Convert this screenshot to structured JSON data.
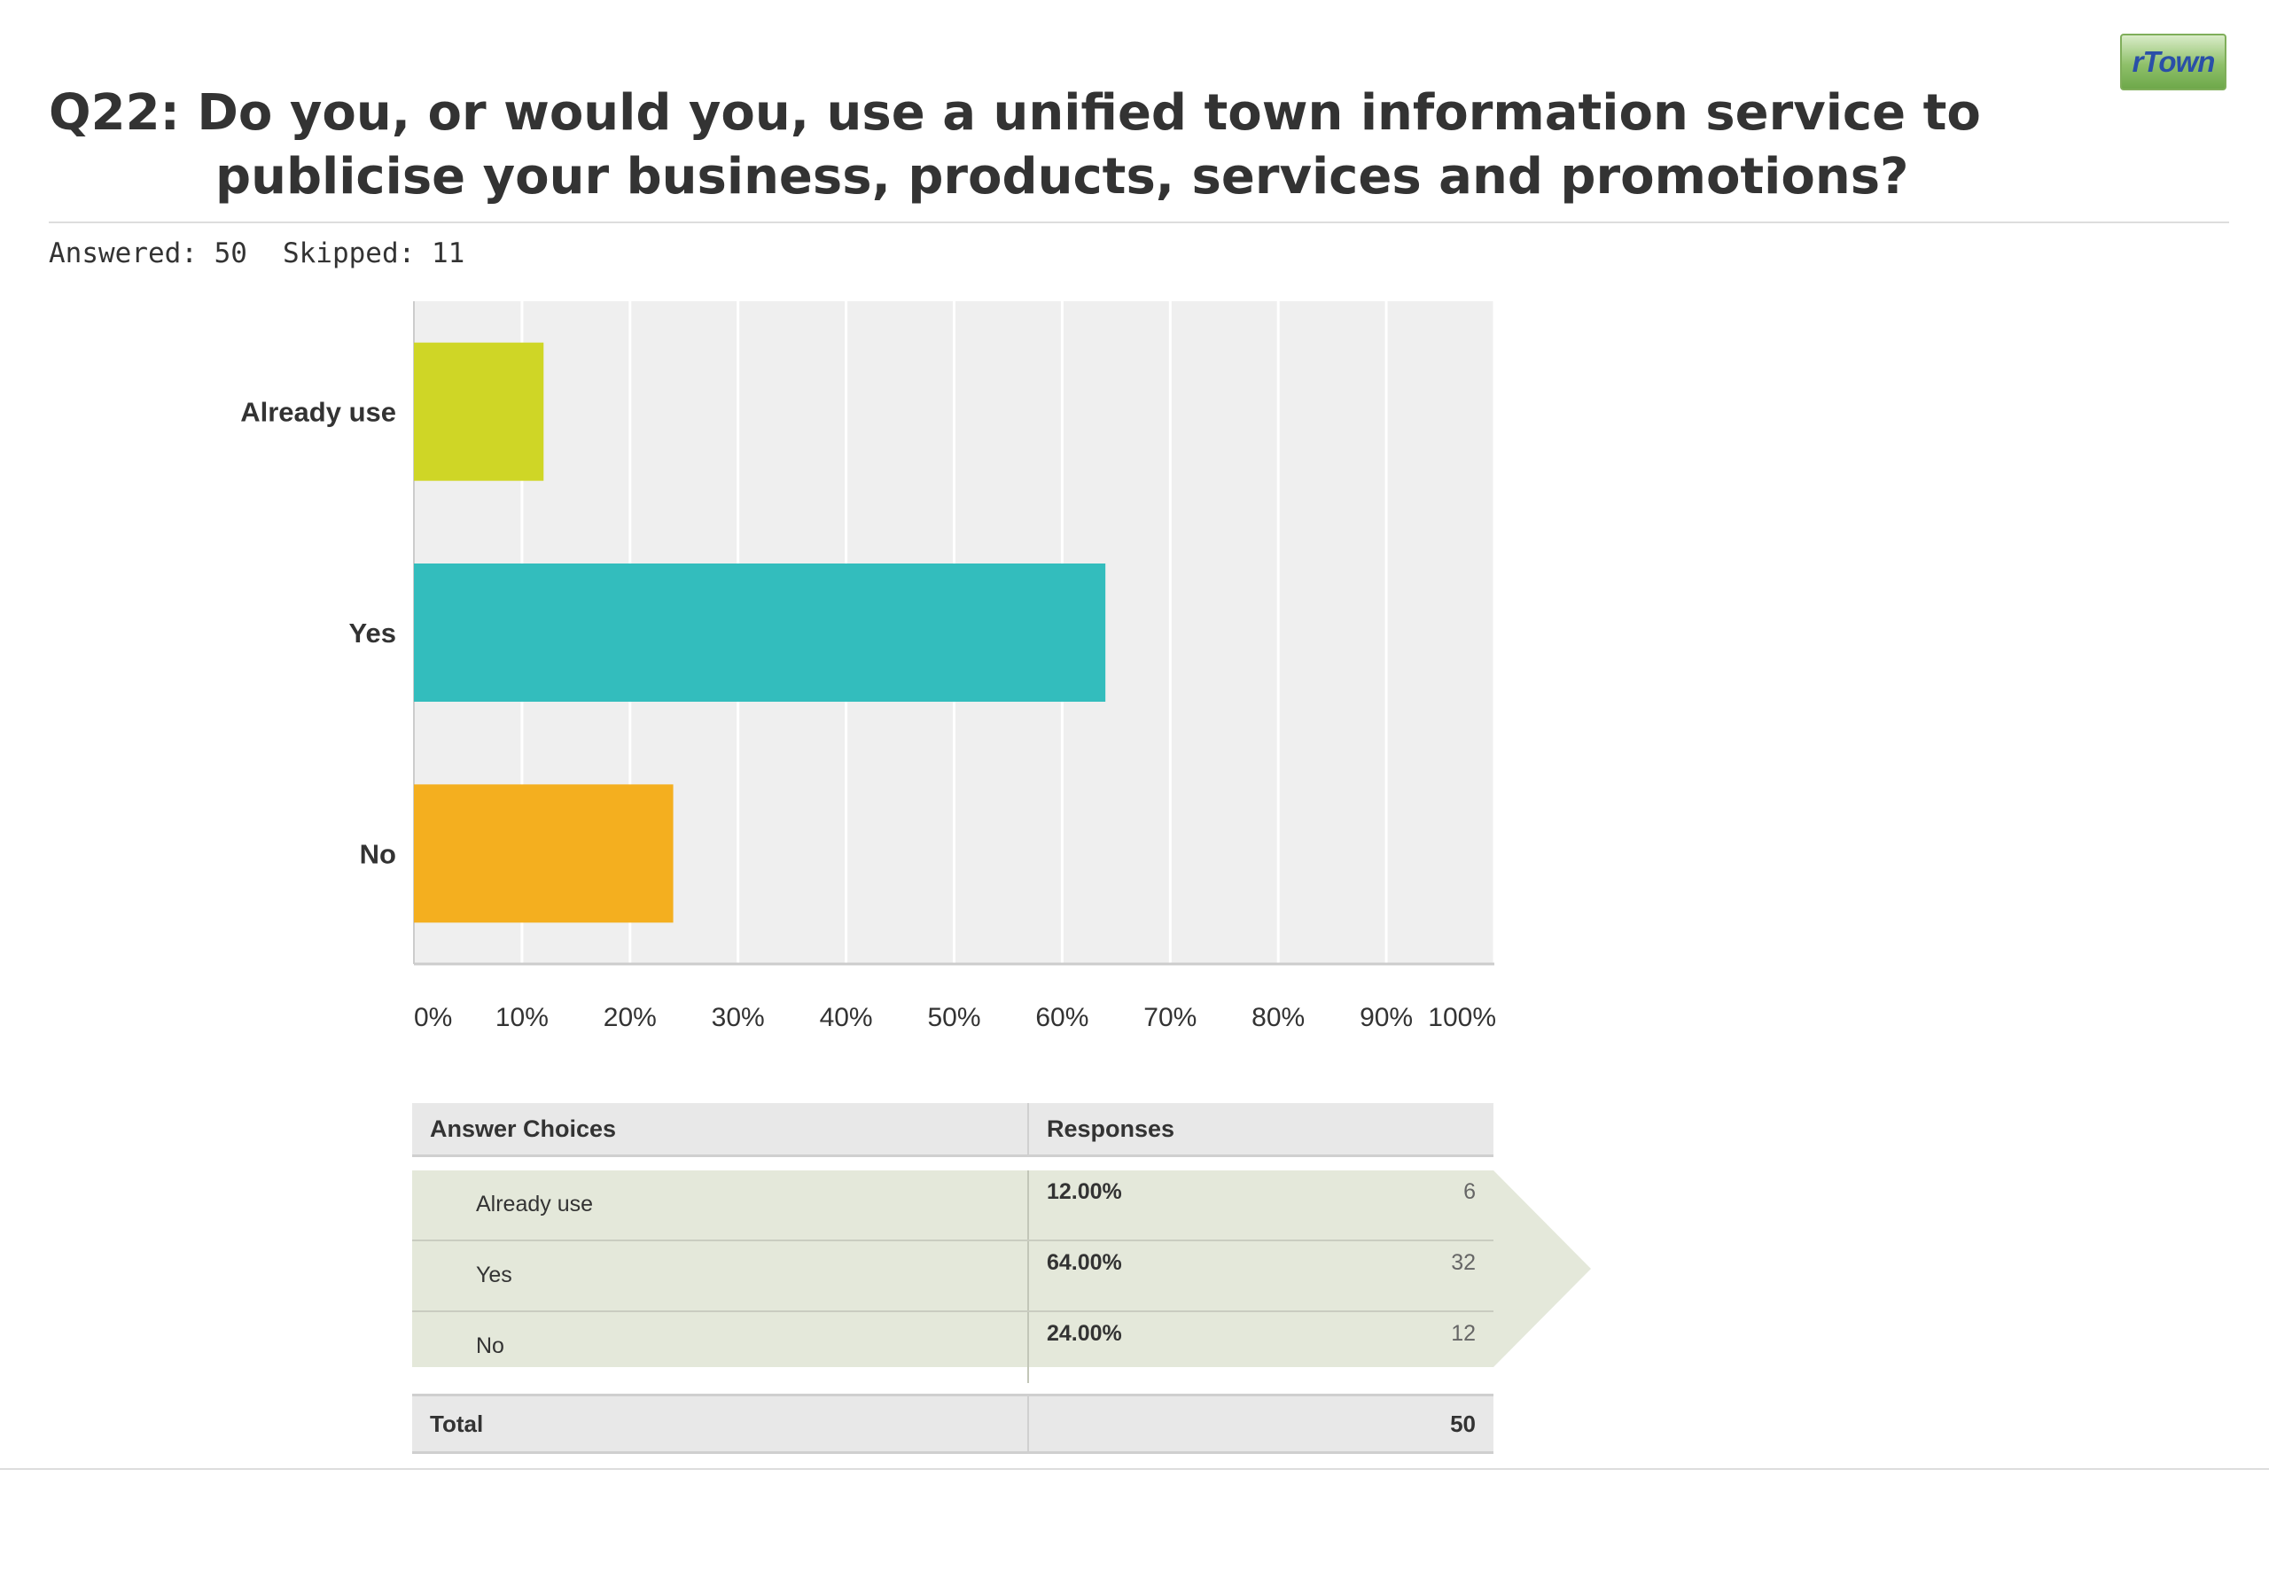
{
  "logo": {
    "text": "rTown"
  },
  "question": {
    "title": "Q22: Do you, or would you, use a unified town information service to publicise your business, products, services and promotions?",
    "answered": "Answered: 50",
    "skipped": "Skipped: 11"
  },
  "chart_data": {
    "type": "bar",
    "orientation": "horizontal",
    "categories": [
      "Already use",
      "Yes",
      "No"
    ],
    "values": [
      12,
      64,
      24
    ],
    "colors": [
      "#cfd626",
      "#33bdbd",
      "#f4af1f"
    ],
    "xlim": [
      0,
      100
    ],
    "x_ticks": [
      "0%",
      "10%",
      "20%",
      "30%",
      "40%",
      "50%",
      "60%",
      "70%",
      "80%",
      "90%",
      "100%"
    ],
    "grid": true,
    "title": "",
    "xlabel": "",
    "ylabel": ""
  },
  "table": {
    "header_choices": "Answer Choices",
    "header_responses": "Responses",
    "rows": [
      {
        "choice": "Already use",
        "percent": "12.00%",
        "count": "6"
      },
      {
        "choice": "Yes",
        "percent": "64.00%",
        "count": "32"
      },
      {
        "choice": "No",
        "percent": "24.00%",
        "count": "12"
      }
    ],
    "total_label": "Total",
    "total_value": "50"
  }
}
